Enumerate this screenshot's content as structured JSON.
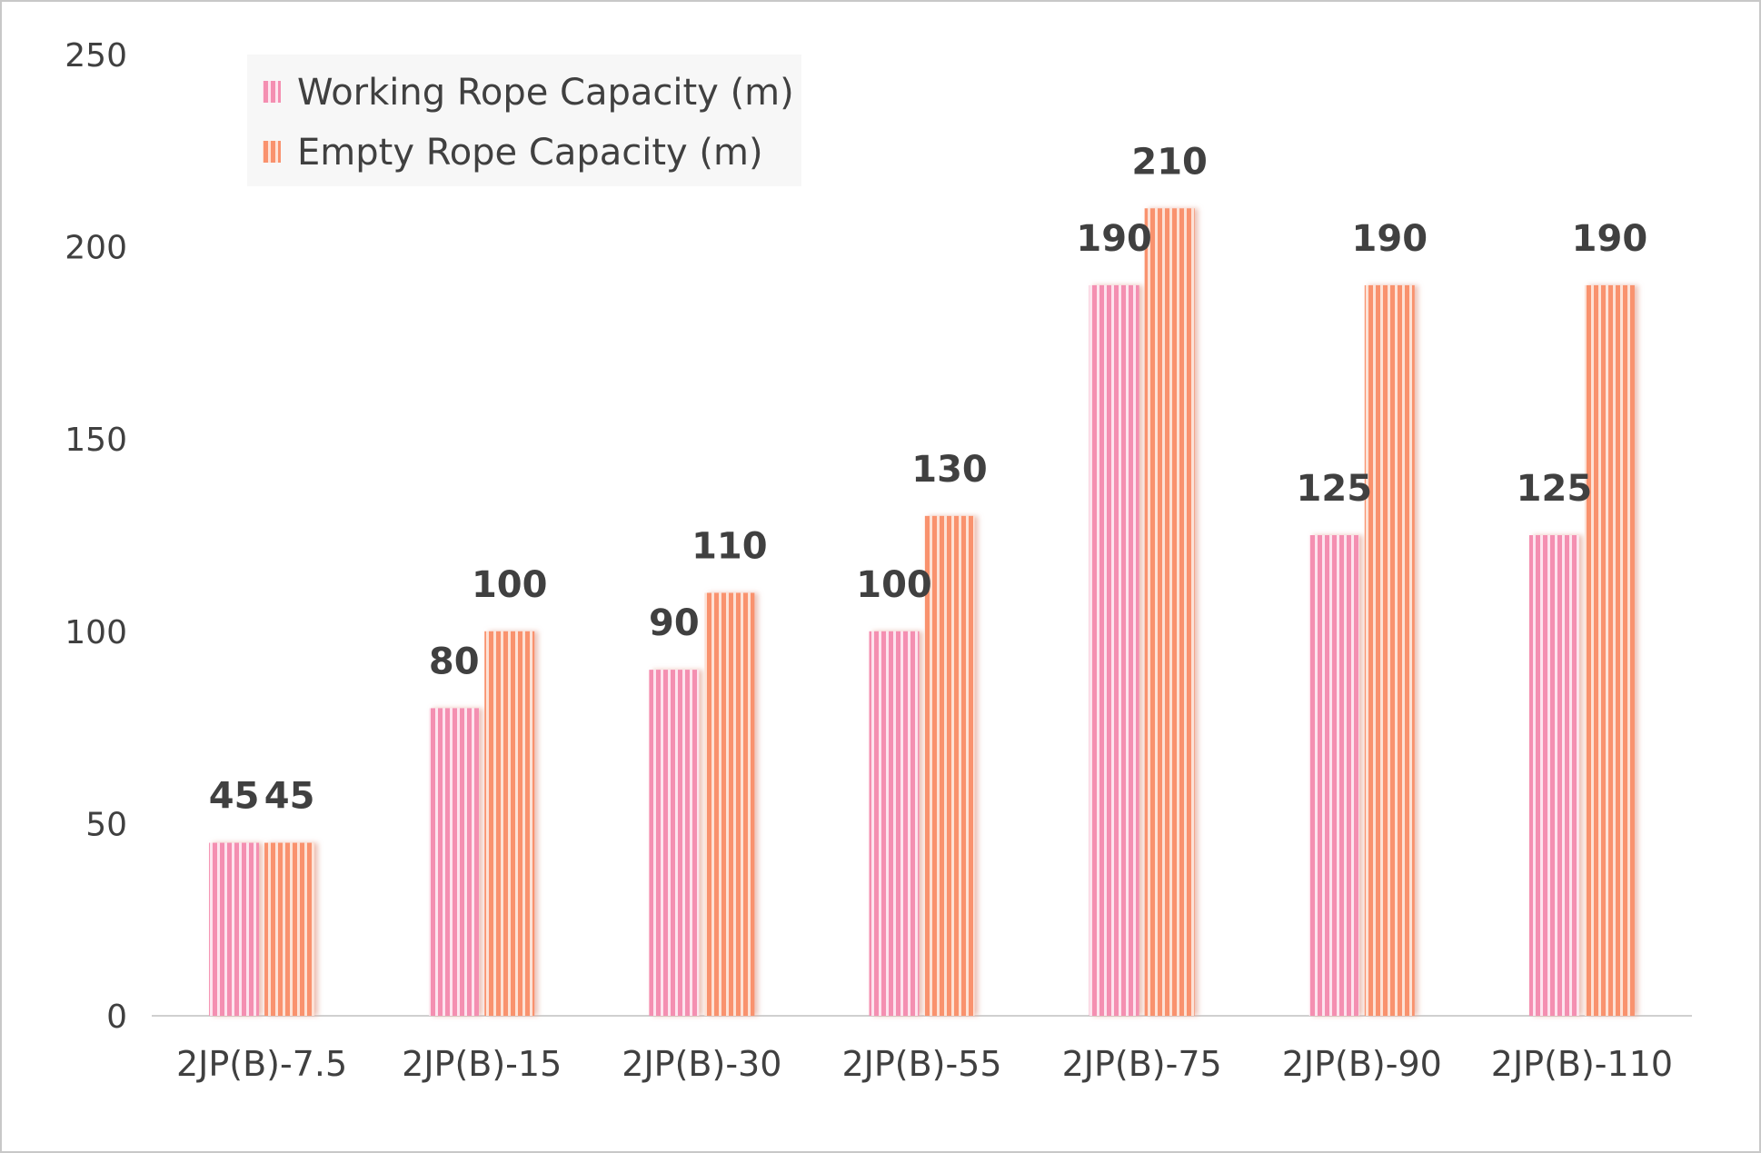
{
  "chart_data": {
    "type": "bar",
    "categories": [
      "2JP(B)-7.5",
      "2JP(B)-15",
      "2JP(B)-30",
      "2JP(B)-55",
      "2JP(B)-75",
      "2JP(B)-90",
      "2JP(B)-110"
    ],
    "series": [
      {
        "name": "Working Rope Capacity (m)",
        "values": [
          45,
          80,
          90,
          100,
          190,
          125,
          125
        ],
        "color": "#f48fb1",
        "stripe": "#fde4ee"
      },
      {
        "name": "Empty Rope Capacity (m)",
        "values": [
          45,
          100,
          110,
          130,
          210,
          190,
          190
        ],
        "color": "#f9926e",
        "stripe": "#fde2d6"
      }
    ],
    "ylim": [
      0,
      250
    ],
    "yticks": [
      0,
      50,
      100,
      150,
      200,
      250
    ],
    "title": "",
    "xlabel": "",
    "ylabel": "",
    "legend_position": "top-left",
    "grid": false,
    "data_labels": true
  }
}
